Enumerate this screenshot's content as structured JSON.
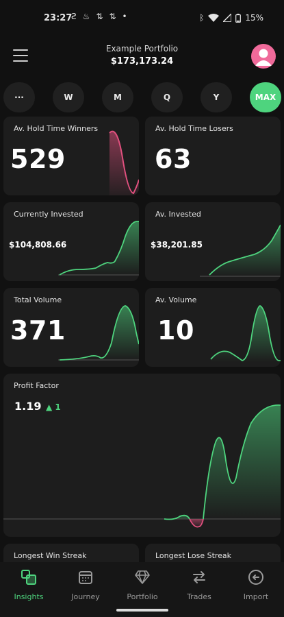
{
  "status_bar": {
    "time": "23:27",
    "battery": "15%"
  },
  "header": {
    "portfolio_name": "Example Portfolio",
    "portfolio_value": "$173,173.24"
  },
  "periods": [
    {
      "label": "···",
      "active": false
    },
    {
      "label": "W",
      "active": false
    },
    {
      "label": "M",
      "active": false
    },
    {
      "label": "Q",
      "active": false
    },
    {
      "label": "Y",
      "active": false
    },
    {
      "label": "MAX",
      "active": true
    }
  ],
  "cards": {
    "hold_winners": {
      "title": "Av. Hold Time Winners",
      "value": "529"
    },
    "hold_losers": {
      "title": "Av. Hold Time Losers",
      "value": "63"
    },
    "currently_invested": {
      "title": "Currently Invested",
      "value": "$104,808.66"
    },
    "av_invested": {
      "title": "Av. Invested",
      "value": "$38,201.85"
    },
    "total_volume": {
      "title": "Total Volume",
      "value": "371"
    },
    "av_volume": {
      "title": "Av. Volume",
      "value": "10"
    },
    "profit_factor": {
      "title": "Profit Factor",
      "value": "1.19",
      "delta": "▲ 1"
    },
    "win_streak": {
      "title": "Longest Win Streak"
    },
    "lose_streak": {
      "title": "Longest Lose Streak"
    }
  },
  "nav": [
    {
      "label": "Insights",
      "icon": "insights-icon",
      "active": true
    },
    {
      "label": "Journey",
      "icon": "calendar-icon",
      "active": false
    },
    {
      "label": "Portfolio",
      "icon": "diamond-icon",
      "active": false
    },
    {
      "label": "Trades",
      "icon": "swap-arrows-icon",
      "active": false
    },
    {
      "label": "Import",
      "icon": "import-icon",
      "active": false
    }
  ],
  "colors": {
    "accent": "#4ed47e",
    "negative": "#e0507e",
    "card": "#1d1d1d",
    "background": "#111111"
  }
}
